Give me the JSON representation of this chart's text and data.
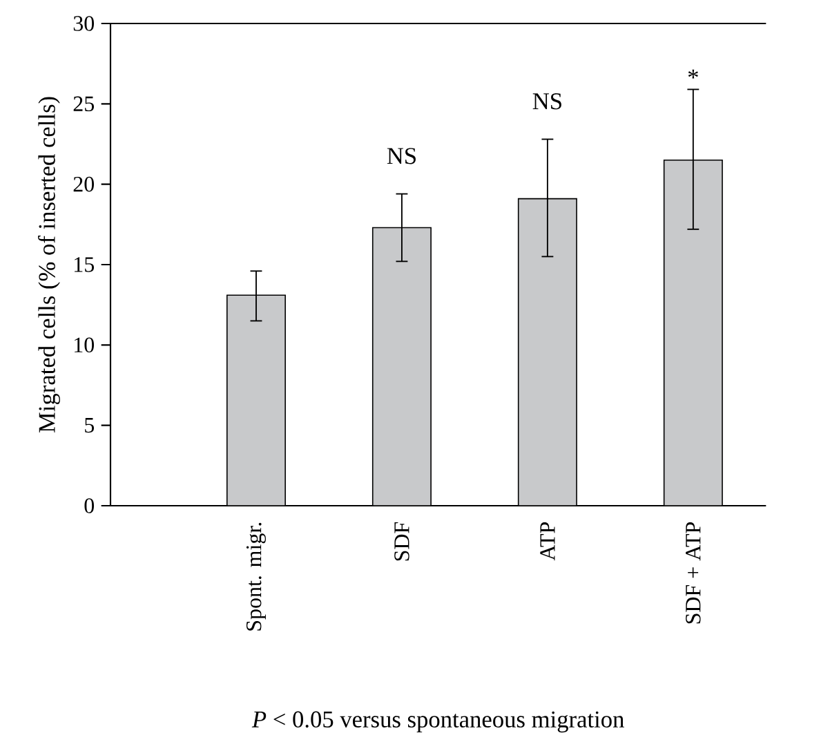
{
  "chart_data": {
    "type": "bar",
    "ylabel": "Migrated cells (% of inserted cells)",
    "categories": [
      "Spont. migr.",
      "SDF",
      "ATP",
      "SDF + ATP"
    ],
    "values": [
      13.1,
      17.3,
      19.1,
      21.5
    ],
    "errors": [
      [
        11.5,
        14.6
      ],
      [
        15.2,
        19.4
      ],
      [
        15.5,
        22.8
      ],
      [
        17.2,
        25.9
      ]
    ],
    "color": "#c8c9cb",
    "ylim": [
      0,
      30
    ],
    "yticks": [
      0,
      5,
      10,
      15,
      20,
      25,
      30
    ],
    "annotations": [
      "NS",
      "NS",
      "*",
      "*P* < 0.05 versus spontaneous migration"
    ]
  }
}
